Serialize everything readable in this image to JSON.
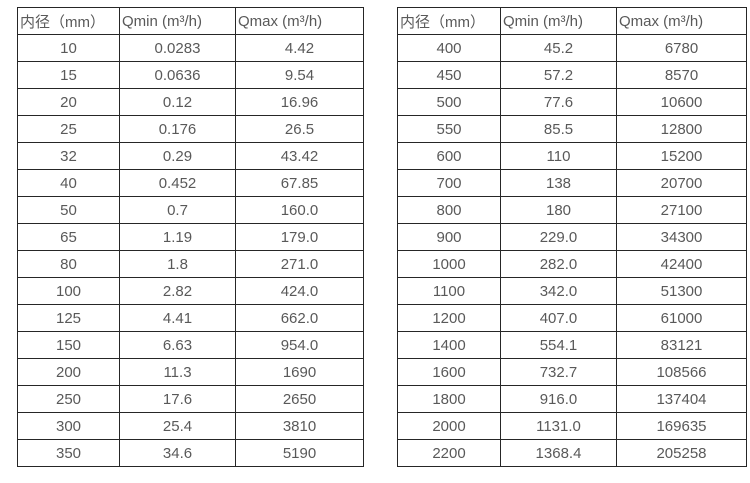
{
  "page": {
    "background_color": "#ffffff",
    "text_color": "#595959",
    "border_color": "#262626"
  },
  "tables": [
    {
      "name": "flow-range-table-dn10-350",
      "headers": [
        "内径（mm）",
        "Qmin (m³/h)",
        "Qmax (m³/h)"
      ],
      "rows": [
        [
          "10",
          "0.0283",
          "4.42"
        ],
        [
          "15",
          "0.0636",
          "9.54"
        ],
        [
          "20",
          "0.12",
          "16.96"
        ],
        [
          "25",
          "0.176",
          "26.5"
        ],
        [
          "32",
          "0.29",
          "43.42"
        ],
        [
          "40",
          "0.452",
          "67.85"
        ],
        [
          "50",
          "0.7",
          "160.0"
        ],
        [
          "65",
          "1.19",
          "179.0"
        ],
        [
          "80",
          "1.8",
          "271.0"
        ],
        [
          "100",
          "2.82",
          "424.0"
        ],
        [
          "125",
          "4.41",
          "662.0"
        ],
        [
          "150",
          "6.63",
          "954.0"
        ],
        [
          "200",
          "11.3",
          "1690"
        ],
        [
          "250",
          "17.6",
          "2650"
        ],
        [
          "300",
          "25.4",
          "3810"
        ],
        [
          "350",
          "34.6",
          "5190"
        ]
      ]
    },
    {
      "name": "flow-range-table-dn400-2200",
      "headers": [
        "内径（mm）",
        "Qmin (m³/h)",
        "Qmax (m³/h)"
      ],
      "rows": [
        [
          "400",
          "45.2",
          "6780"
        ],
        [
          "450",
          "57.2",
          "8570"
        ],
        [
          "500",
          "77.6",
          "10600"
        ],
        [
          "550",
          "85.5",
          "12800"
        ],
        [
          "600",
          "110",
          "15200"
        ],
        [
          "700",
          "138",
          "20700"
        ],
        [
          "800",
          "180",
          "27100"
        ],
        [
          "900",
          "229.0",
          "34300"
        ],
        [
          "1000",
          "282.0",
          "42400"
        ],
        [
          "1100",
          "342.0",
          "51300"
        ],
        [
          "1200",
          "407.0",
          "61000"
        ],
        [
          "1400",
          "554.1",
          "83121"
        ],
        [
          "1600",
          "732.7",
          "108566"
        ],
        [
          "1800",
          "916.0",
          "137404"
        ],
        [
          "2000",
          "1131.0",
          "169635"
        ],
        [
          "2200",
          "1368.4",
          "205258"
        ]
      ]
    }
  ]
}
